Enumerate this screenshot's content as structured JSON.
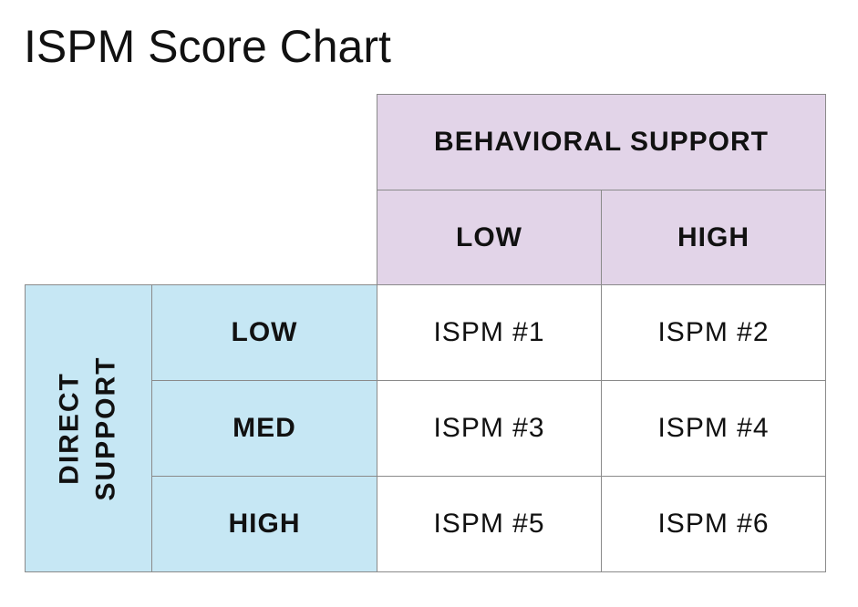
{
  "title": "ISPM Score Chart",
  "table": {
    "column_group": "BEHAVIORAL SUPPORT",
    "columns": [
      "LOW",
      "HIGH"
    ],
    "row_group": "DIRECT SUPPORT",
    "rows": [
      {
        "label": "LOW",
        "cells": [
          "ISPM #1",
          "ISPM #2"
        ]
      },
      {
        "label": "MED",
        "cells": [
          "ISPM #3",
          "ISPM #4"
        ]
      },
      {
        "label": "HIGH",
        "cells": [
          "ISPM #5",
          "ISPM #6"
        ]
      }
    ]
  }
}
